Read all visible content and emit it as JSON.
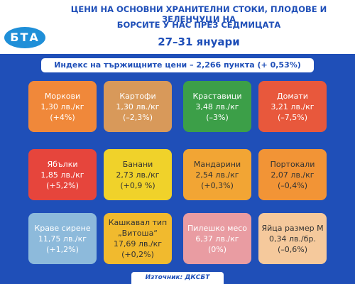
{
  "header": {
    "logo": "БТА",
    "title_lines": [
      "ЦЕНИ НА ОСНОВНИ ХРАНИТЕЛНИ СТОКИ, ПЛОДОВЕ И ЗЕЛЕНЧУЦИ НА",
      "БОРСИТЕ У НАС ПРЕЗ СЕДМИЦАТА"
    ],
    "date": "27–31 януари"
  },
  "index_line": "Индекс на тържищните цени – 2,266 пункта (+ 0,53%)",
  "tiles": [
    {
      "name": "Моркови",
      "price": "1,30 лв./кг",
      "change": "(+4%)",
      "color": "#f0883a",
      "text_color": "#ffffff"
    },
    {
      "name": "Картофи",
      "price": "1,30 лв./кг",
      "change": "(–2,3%)",
      "color": "#d8995a",
      "text_color": "#ffffff"
    },
    {
      "name": "Краставици",
      "price": "3,48 лв./кг",
      "change": "(–3%)",
      "color": "#3c9f48",
      "text_color": "#ffffff"
    },
    {
      "name": "Домати",
      "price": "3,21 лв./кг",
      "change": "(–7,5%)",
      "color": "#e8583c",
      "text_color": "#ffffff"
    },
    {
      "name": "Ябълки",
      "price": "1,85 лв./кг",
      "change": "(+5,2%)",
      "color": "#e6453c",
      "text_color": "#ffffff"
    },
    {
      "name": "Банани",
      "price": "2,73 лв./кг",
      "change": "(+0,9 %)",
      "color": "#f0d22a",
      "text_color": "#333333"
    },
    {
      "name": "Мандарини",
      "price": "2,54 лв./кг",
      "change": "(+0,3%)",
      "color": "#f2a534",
      "text_color": "#333333"
    },
    {
      "name": "Портокали",
      "price": "2,07 лв./кг",
      "change": "(–0,4%)",
      "color": "#f29436",
      "text_color": "#333333"
    },
    {
      "name": "Краве сирене",
      "price": "11,75 лв./кг",
      "change": "(+1,2%)",
      "color": "#8dbadb",
      "text_color": "#ffffff"
    },
    {
      "name": "Кашкавал тип „Витоша“",
      "price": "17,69 лв./кг",
      "change": "(+0,2%)",
      "color": "#f1ba2e",
      "text_color": "#333333"
    },
    {
      "name": "Пилешко месо",
      "price": "6,37 лв./кг",
      "change": "(0%)",
      "color": "#e99ca2",
      "text_color": "#ffffff"
    },
    {
      "name": "Яйца размер М",
      "price": "0,34 лв./бр.",
      "change": "(–0,6%)",
      "color": "#f5c99c",
      "text_color": "#333333"
    }
  ],
  "source": "Източник: ДКСБТ"
}
